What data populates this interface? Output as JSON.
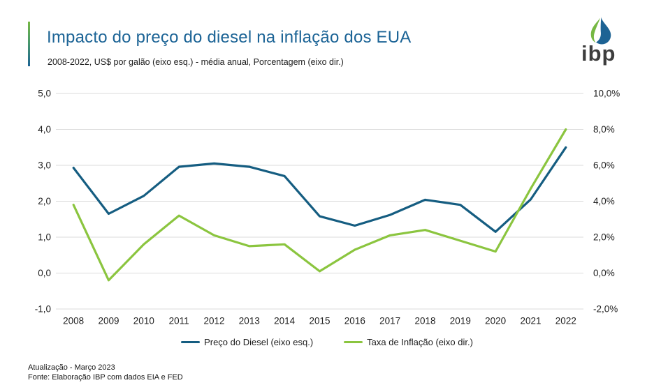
{
  "header": {
    "title": "Impacto do preço do diesel na inflação dos EUA",
    "subtitle": "2008-2022, US$ por galão (eixo esq.) - média anual, Porcentagem (eixo dir.)",
    "logo_text": "ibp"
  },
  "colors": {
    "diesel_line": "#155d81",
    "inflation_line": "#8bc53f",
    "gridline": "#dbdbdb",
    "title": "#1c6496",
    "accent_top": "#76b843",
    "accent_bottom": "#1d6394"
  },
  "chart_data": {
    "type": "line",
    "title": "Impacto do preço do diesel na inflação dos EUA",
    "subtitle": "2008-2022, US$ por galão (eixo esq.) - média anual, Porcentagem (eixo dir.)",
    "categories": [
      "2008",
      "2009",
      "2010",
      "2011",
      "2012",
      "2013",
      "2014",
      "2015",
      "2016",
      "2017",
      "2018",
      "2019",
      "2020",
      "2021",
      "2022"
    ],
    "series": [
      {
        "name": "Preço do Diesel (eixo esq.)",
        "axis": "left",
        "color": "#155d81",
        "values": [
          2.93,
          1.65,
          2.15,
          2.96,
          3.05,
          2.96,
          2.7,
          1.58,
          1.32,
          1.62,
          2.04,
          1.9,
          1.15,
          2.05,
          3.5
        ]
      },
      {
        "name": "Taxa de Inflação (eixo dir.)",
        "axis": "right",
        "color": "#8bc53f",
        "values": [
          3.8,
          -0.4,
          1.6,
          3.2,
          2.1,
          1.5,
          1.6,
          0.1,
          1.3,
          2.1,
          2.4,
          1.8,
          1.2,
          4.7,
          8.0
        ]
      }
    ],
    "left_axis": {
      "min": -1,
      "max": 5,
      "step": 1,
      "tick_labels": [
        "5,0",
        "4,0",
        "3,0",
        "2,0",
        "1,0",
        "0,0",
        "-1,0"
      ]
    },
    "right_axis": {
      "min": -2,
      "max": 10,
      "step": 2,
      "tick_labels": [
        "10,0%",
        "8,0%",
        "6,0%",
        "4,0%",
        "2,0%",
        "0,0%",
        "-2,0%"
      ]
    },
    "grid": true,
    "legend_position": "bottom"
  },
  "legend": {
    "items": [
      {
        "label": "Preço do Diesel (eixo esq.)",
        "color": "#155d81"
      },
      {
        "label": "Taxa de Inflação (eixo dir.)",
        "color": "#8bc53f"
      }
    ]
  },
  "footer": {
    "line1": "Atualização - Março 2023",
    "line2": "Fonte: Elaboração IBP com dados EIA e FED"
  }
}
